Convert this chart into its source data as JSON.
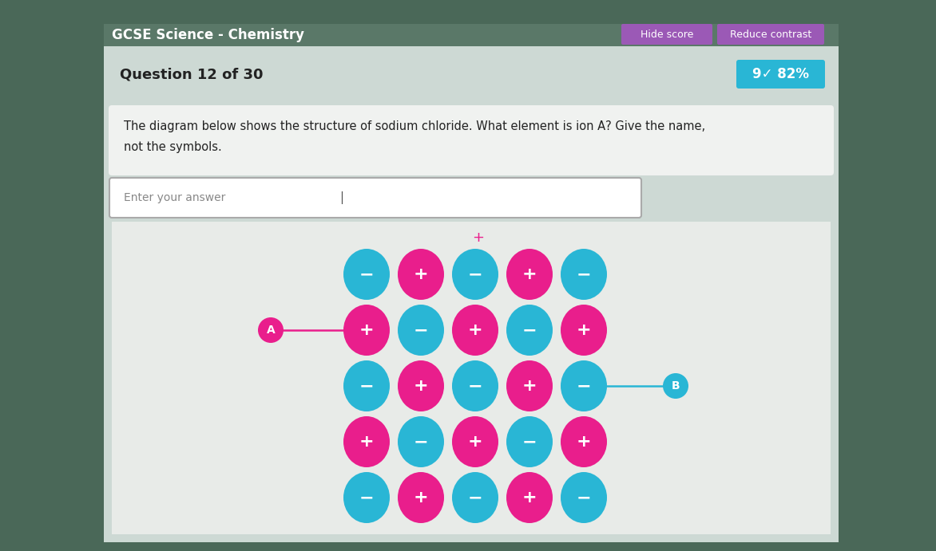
{
  "title": "GCSE Science - Chemistry",
  "outer_bg": "#4a6b5a",
  "panel_bg": "#c8d8d0",
  "content_bg": "#e8ebe8",
  "white_panel": "#f0f2f0",
  "question_text": "Question 12 of 30",
  "score_text": "9✓ 82%",
  "score_bg": "#29b6d5",
  "hide_score_bg": "#9b59b6",
  "reduce_contrast_bg": "#9b59b6",
  "description_line1": "The diagram below shows the structure of sodium chloride. What element is ion A? Give the name,",
  "description_line2": "not the symbols.",
  "input_placeholder": "Enter your answer",
  "pink_color": "#e91e8c",
  "blue_color": "#29b6d5",
  "white_color": "#ffffff",
  "grid_rows": [
    [
      "-",
      "+",
      "-",
      "+",
      "-"
    ],
    [
      "+",
      "-",
      "+",
      "-",
      "+"
    ],
    [
      "-",
      "+",
      "-",
      "+",
      "-"
    ],
    [
      "+",
      "-",
      "+",
      "-",
      "+"
    ],
    [
      "-",
      "+",
      "-",
      "+",
      "-"
    ]
  ]
}
